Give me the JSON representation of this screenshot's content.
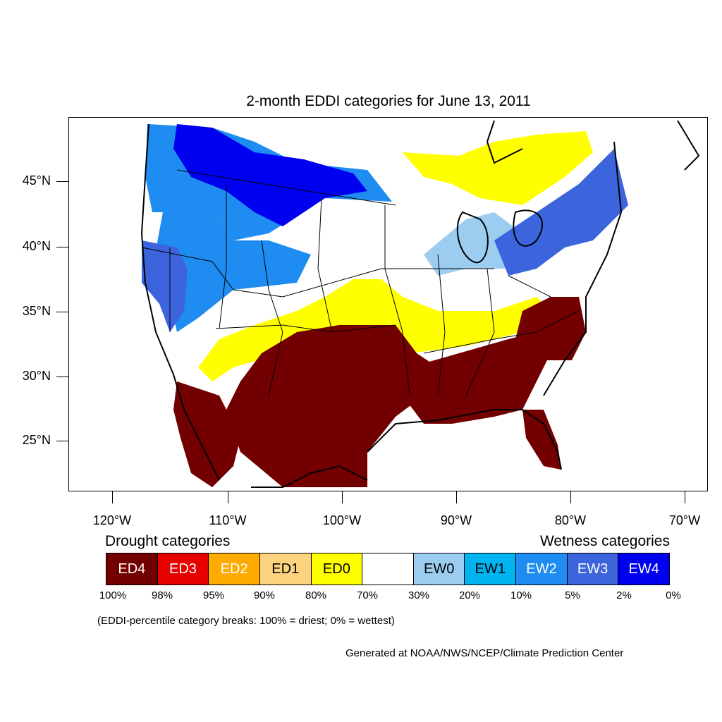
{
  "title": "2-month EDDI categories for June 13, 2011",
  "map": {
    "lat_labels": [
      "45°N",
      "40°N",
      "35°N",
      "30°N",
      "25°N"
    ],
    "lon_labels": [
      "120°W",
      "110°W",
      "100°W",
      "90°W",
      "80°W",
      "70°W"
    ],
    "regions": {
      "pacific_northwest": "EW2",
      "northern_rockies_montana": "EW4",
      "california_nevada": "EW3",
      "great_basin": "EW2",
      "northern_plains": "neutral",
      "great_lakes": "EW0",
      "new_york_new_england": "EW3",
      "southern_ontario_quebec": "ED0",
      "central_plains": "ED0",
      "texas_oklahoma": "ED4",
      "gulf_coast_southeast": "ED4",
      "carolinas_virginia": "ED4",
      "northern_mexico": "ED4",
      "florida": "ED4"
    }
  },
  "legend": {
    "drought_heading": "Drought categories",
    "wetness_heading": "Wetness categories",
    "categories": [
      {
        "label": "ED4",
        "color": "#730000",
        "text_color": "#ffffff"
      },
      {
        "label": "ED3",
        "color": "#e60000",
        "text_color": "#ffffff"
      },
      {
        "label": "ED2",
        "color": "#ffaa00",
        "text_color": "#ffffff"
      },
      {
        "label": "ED1",
        "color": "#fcd37f",
        "text_color": "#000000"
      },
      {
        "label": "ED0",
        "color": "#ffff00",
        "text_color": "#000000"
      },
      {
        "label": "",
        "color": "#ffffff",
        "text_color": "#000000"
      },
      {
        "label": "EW0",
        "color": "#9ccdf0",
        "text_color": "#000000"
      },
      {
        "label": "EW1",
        "color": "#00b4f0",
        "text_color": "#000000"
      },
      {
        "label": "EW2",
        "color": "#1e8cf0",
        "text_color": "#ffffff"
      },
      {
        "label": "EW3",
        "color": "#3c64dc",
        "text_color": "#ffffff"
      },
      {
        "label": "EW4",
        "color": "#0000f0",
        "text_color": "#ffffff"
      }
    ],
    "percentiles": [
      "100%",
      "98%",
      "95%",
      "90%",
      "80%",
      "70%",
      "30%",
      "20%",
      "10%",
      "5%",
      "2%",
      "0%"
    ]
  },
  "note": "(EDDI-percentile category breaks: 100% = driest; 0% = wettest)",
  "credit": "Generated at NOAA/NWS/NCEP/Climate Prediction Center"
}
